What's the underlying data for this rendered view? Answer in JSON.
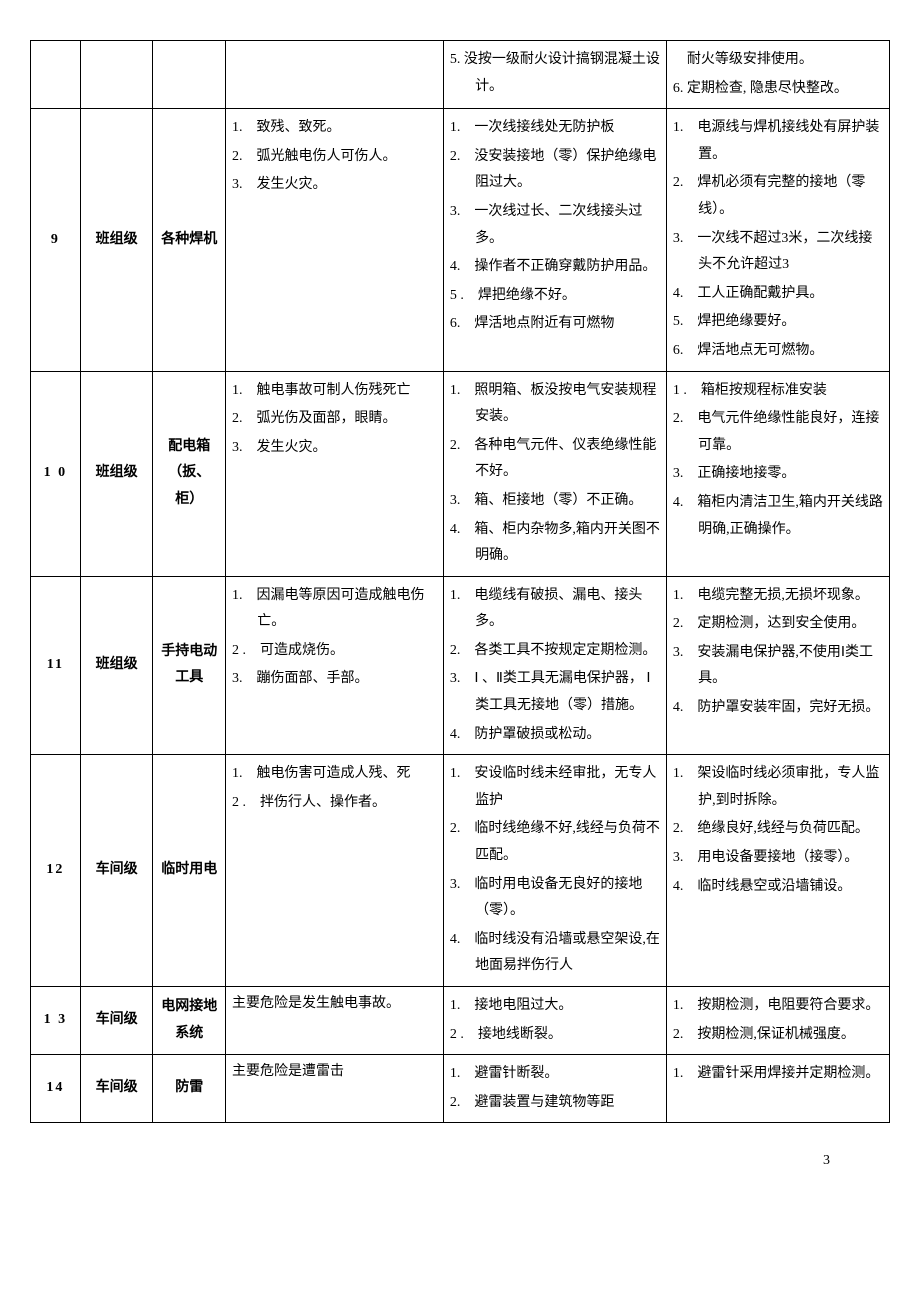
{
  "page_number": "3",
  "columns": {
    "idx_width": 48,
    "level_width": 70,
    "name_width": 70,
    "hazard_width": 210,
    "cause_width": 215,
    "measure_width": 215
  },
  "rows": [
    {
      "idx": "",
      "level": "",
      "name": "",
      "hazard_items": [],
      "cause_items": [
        "5. 没按一级耐火设计搞钢混凝土设计。"
      ],
      "measure_prefix": "　耐火等级安排使用。",
      "measure_items": [
        "6. 定期检查, 隐患尽快整改。"
      ]
    },
    {
      "idx": "9",
      "level": "班组级",
      "name": "各种焊机",
      "hazard_items": [
        "1.　致残、致死。",
        "2.　弧光触电伤人可伤人。",
        "3.　发生火灾。"
      ],
      "cause_items": [
        "1.　一次线接线处无防护板",
        "2.　没安装接地（零）保护绝缘电阻过大。",
        "3.　一次线过长、二次线接头过多。",
        "4.　操作者不正确穿戴防护用品。",
        "5 .　焊把绝缘不好。",
        "6.　焊活地点附近有可燃物"
      ],
      "measure_items": [
        "1.　电源线与焊机接线处有屏护装置。",
        "2.　焊机必须有完整的接地（零线）。",
        "3.　一次线不超过3米，二次线接头不允许超过3",
        "4.　工人正确配戴护具。",
        "5.　焊把绝缘要好。",
        "6.　焊活地点无可燃物。"
      ]
    },
    {
      "idx": "1 0",
      "level": "班组级",
      "name": "配电箱（扳、柜）",
      "hazard_items": [
        "1.　触电事故可制人伤残死亡",
        "2.　弧光伤及面部，眼睛。",
        "3.　发生火灾。"
      ],
      "cause_items": [
        "1.　照明箱、板没按电气安装规程安装。",
        "2.　各种电气元件、仪表绝缘性能不好。",
        "3.　箱、柜接地（零）不正确。",
        "4.　箱、柜内杂物多,箱内开关图不明确。"
      ],
      "measure_items": [
        "1 .　箱柜按规程标准安装",
        "2.　电气元件绝缘性能良好，连接可靠。",
        "3.　正确接地接零。",
        "4.　箱柜内清洁卫生,箱内开关线路明确,正确操作。"
      ]
    },
    {
      "idx": "11",
      "level": "班组级",
      "name": "手持电动工具",
      "hazard_items": [
        "1.　因漏电等原因可造成触电伤亡。",
        "2 .　可造成烧伤。",
        "3.　蹦伤面部、手部。"
      ],
      "cause_items": [
        "1.　电缆线有破损、漏电、接头多。",
        "2.　各类工具不按规定定期检测。",
        "3.　Ⅰ 、Ⅱ类工具无漏电保护器， Ⅰ类工具无接地（零）措施。",
        "4.　防护罩破损或松动。"
      ],
      "measure_items": [
        "1.　电缆完整无损,无损坏现象。",
        "2.　定期检测，达到安全使用。",
        "3.　安装漏电保护器,不使用Ⅰ类工具。",
        "4.　防护罩安装牢固，完好无损。"
      ]
    },
    {
      "idx": "12",
      "level": "车间级",
      "name": "临时用电",
      "hazard_items": [
        "1.　触电伤害可造成人残、死",
        "2 .　拌伤行人、操作者。"
      ],
      "cause_items": [
        "1.　安设临时线未经审批，无专人监护",
        "2.　临时线绝缘不好,线经与负荷不匹配。",
        "3.　临时用电设备无良好的接地（零）。",
        "4.　临时线没有沿墙或悬空架设,在地面易拌伤行人"
      ],
      "measure_items": [
        "1.　架设临时线必须审批，专人监护,到时拆除。",
        "2.　绝缘良好,线经与负荷匹配。",
        "3.　用电设备要接地（接零）。",
        "4.　临时线悬空或沿墙铺设。"
      ]
    },
    {
      "idx": "1 3",
      "level": "车间级",
      "name": "电网接地系统",
      "hazard_text": "主要危险是发生触电事故。",
      "cause_items": [
        "1.　接地电阻过大。",
        "2 .　接地线断裂。"
      ],
      "measure_items": [
        "1.　按期检测，电阻要符合要求。",
        "2.　按期检测,保证机械强度。"
      ]
    },
    {
      "idx": "14",
      "level": "车间级",
      "name": "防雷",
      "hazard_text": "主要危险是遭雷击",
      "cause_items": [
        "1.　避雷针断裂。",
        "2.　避雷装置与建筑物等距"
      ],
      "measure_items": [
        "1.　避雷针采用焊接并定期检测。"
      ]
    }
  ]
}
